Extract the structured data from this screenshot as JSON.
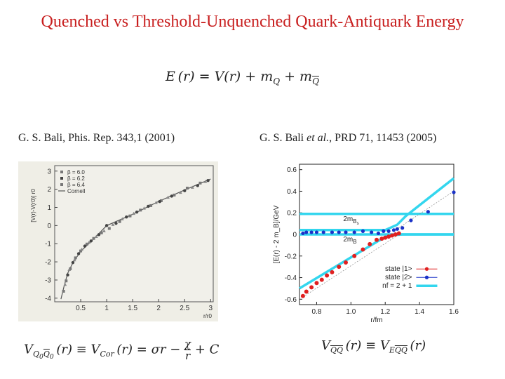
{
  "slide": {
    "title": "Quenched vs Threshold-Unquenched Quark-Antiquark Energy",
    "equation_top": "E(r) = V(r) + m_Q + m_Q̄",
    "caption_left": "G. S. Bali, Phis. Rep. 343,1 (2001)",
    "caption_right_a": "G. S. Bali ",
    "caption_right_em": "et al.",
    "caption_right_b": ", PRD 71, 11453 (2005)",
    "equation_left": "V_{Q0 Q̄0}(r) ≡ V_Cor(r) = σr − χ/r + C",
    "equation_right": "V_{QQ̄}(r) ≡ V_{E QQ̄}(r)"
  },
  "chart_data": [
    {
      "type": "scatter",
      "xlabel": "r/r0",
      "ylabel": "[V(r)-V(r0)] r0",
      "xlim": [
        0,
        3.05
      ],
      "ylim": [
        -4.2,
        3.3
      ],
      "xticks": [
        0.5,
        1,
        1.5,
        2,
        2.5,
        3
      ],
      "yticks": [
        -4,
        -3,
        -2,
        -1,
        0,
        1,
        2,
        3
      ],
      "legend_position": "top-left",
      "series": [
        {
          "name": "β = 6.0",
          "x": [
            0.17,
            0.22,
            0.3,
            0.4,
            0.5,
            0.62,
            0.75,
            0.9,
            1.05,
            1.25,
            1.45,
            1.65,
            1.85,
            2.05,
            2.3,
            2.55,
            2.8
          ],
          "y": [
            -3.62,
            -3.05,
            -2.38,
            -1.78,
            -1.4,
            -1.02,
            -0.71,
            -0.4,
            -0.16,
            0.22,
            0.53,
            0.85,
            1.1,
            1.37,
            1.68,
            2.06,
            2.34
          ]
        },
        {
          "name": "β = 6.2",
          "x": [
            0.25,
            0.35,
            0.46,
            0.58,
            0.7,
            0.85,
            1.0,
            1.18,
            1.38,
            1.58,
            1.8,
            2.02,
            2.25,
            2.5,
            2.75,
            2.95
          ],
          "y": [
            -2.72,
            -2.04,
            -1.55,
            -1.13,
            -0.85,
            -0.5,
            0.0,
            0.12,
            0.47,
            0.74,
            1.06,
            1.32,
            1.62,
            1.92,
            2.2,
            2.48
          ]
        },
        {
          "name": "β = 6.4",
          "x": [
            0.2,
            0.28,
            0.38,
            0.52,
            0.66,
            0.8,
            0.95,
            1.12,
            1.3,
            1.52,
            1.72,
            1.95,
            2.18,
            2.42,
            2.65,
            2.9
          ],
          "y": [
            -3.25,
            -2.43,
            -1.9,
            -1.32,
            -0.93,
            -0.61,
            -0.3,
            0.05,
            0.36,
            0.66,
            0.95,
            1.26,
            1.55,
            1.82,
            2.1,
            2.42
          ]
        },
        {
          "name": "Cornell",
          "kind": "curve",
          "x": [
            0.12,
            0.18,
            0.25,
            0.35,
            0.5,
            0.7,
            1.0,
            1.5,
            2.0,
            2.5,
            3.0
          ],
          "y": [
            -4.05,
            -3.35,
            -2.63,
            -2.05,
            -1.42,
            -0.88,
            0.0,
            0.62,
            1.33,
            1.96,
            2.56
          ]
        }
      ]
    },
    {
      "type": "line",
      "xlabel": "r/fm",
      "ylabel": "[E(r) - 2 m_B]/GeV",
      "xlim": [
        0.7,
        1.6
      ],
      "ylim": [
        -0.65,
        0.65
      ],
      "xticks": [
        0.8,
        1.0,
        1.2,
        1.4,
        1.6
      ],
      "yticks": [
        -0.6,
        -0.4,
        -0.2,
        0,
        0.2,
        0.4,
        0.6
      ],
      "legend_position": "bottom-right",
      "annotations": [
        {
          "text": "2m",
          "sub": "B",
          "subsub": "s",
          "x": 0.955,
          "y": 0.125
        },
        {
          "text": "2m",
          "sub": "B",
          "x": 0.955,
          "y": -0.065
        }
      ],
      "series": [
        {
          "name": "state |1>",
          "color": "#e02020",
          "x": [
            0.72,
            0.74,
            0.77,
            0.8,
            0.83,
            0.86,
            0.89,
            0.93,
            0.97,
            1.02,
            1.07,
            1.11,
            1.15,
            1.18,
            1.2,
            1.22,
            1.24,
            1.26,
            1.28
          ],
          "y": [
            -0.57,
            -0.53,
            -0.49,
            -0.45,
            -0.42,
            -0.38,
            -0.35,
            -0.3,
            -0.26,
            -0.2,
            -0.14,
            -0.09,
            -0.05,
            -0.04,
            -0.03,
            -0.02,
            -0.01,
            0.0,
            0.01
          ]
        },
        {
          "name": "state |2>",
          "color": "#1a32c8",
          "x": [
            0.72,
            0.74,
            0.77,
            0.8,
            0.84,
            0.89,
            0.93,
            0.97,
            1.02,
            1.07,
            1.12,
            1.16,
            1.19,
            1.22,
            1.25,
            1.27,
            1.3,
            1.35,
            1.45,
            1.6
          ],
          "y": [
            0.01,
            0.02,
            0.02,
            0.02,
            0.02,
            0.02,
            0.02,
            0.02,
            0.02,
            0.03,
            0.02,
            0.01,
            0.03,
            0.03,
            0.04,
            0.05,
            0.06,
            0.13,
            0.21,
            0.39
          ]
        },
        {
          "name": "nf = 2 + 1",
          "color": "#33d6ee",
          "kind": "band",
          "upper_x": [
            0.7,
            1.2,
            1.27,
            1.32,
            1.6
          ],
          "upper_y": [
            0.04,
            0.04,
            0.09,
            0.17,
            0.52
          ],
          "lower_x": [
            0.7,
            1.16,
            1.22,
            1.3,
            1.6
          ],
          "lower_y": [
            -0.5,
            -0.06,
            -0.01,
            0.0,
            0.0
          ],
          "flat_high": 0.19,
          "flat_low": 0.0
        }
      ]
    }
  ]
}
